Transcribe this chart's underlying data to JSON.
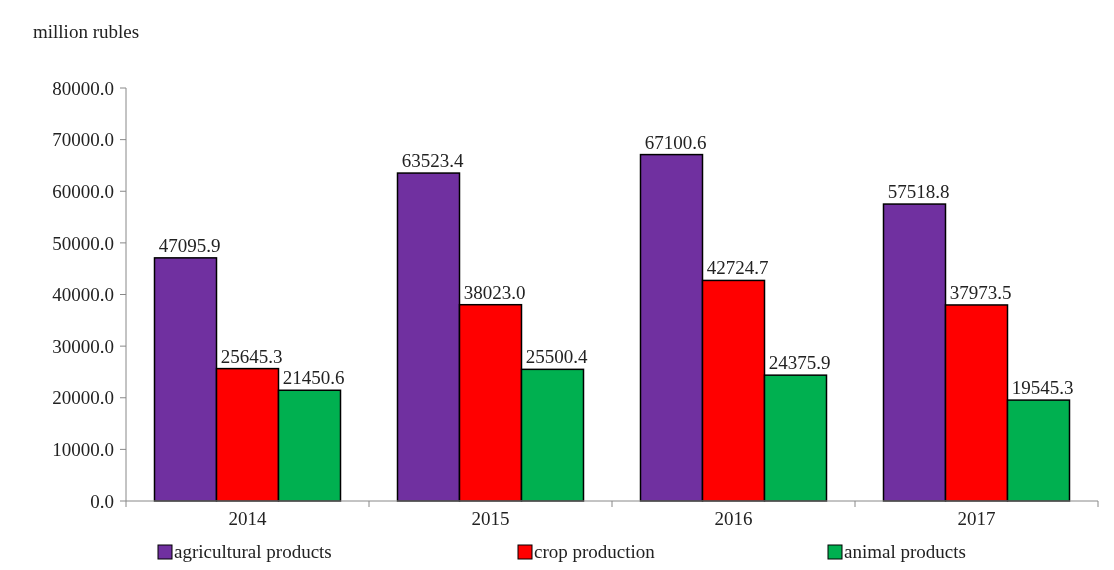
{
  "chart_data": {
    "type": "bar",
    "ylabel": "million rubles",
    "categories": [
      "2014",
      "2015",
      "2016",
      "2017"
    ],
    "series": [
      {
        "name": "agricultural products",
        "color": "#7030a0",
        "values": [
          47095.9,
          63523.4,
          67100.6,
          57518.8
        ],
        "value_labels": [
          "47095.9",
          "63523.4",
          "67100.6",
          "57518.8"
        ]
      },
      {
        "name": "crop production",
        "color": "#ff0000",
        "values": [
          25645.3,
          38023.0,
          42724.7,
          37973.5
        ],
        "value_labels": [
          "25645.3",
          "38023.0",
          "42724.7",
          "37973.5"
        ]
      },
      {
        "name": "animal products",
        "color": "#00b050",
        "values": [
          21450.6,
          25500.4,
          24375.9,
          19545.3
        ],
        "value_labels": [
          "21450.6",
          "25500.4",
          "24375.9",
          "19545.3"
        ]
      }
    ],
    "ylim": [
      0,
      80000
    ],
    "yticks": [
      {
        "value": 0,
        "label": "0.0"
      },
      {
        "value": 10000,
        "label": "10000.0"
      },
      {
        "value": 20000,
        "label": "20000.0"
      },
      {
        "value": 30000,
        "label": "30000.0"
      },
      {
        "value": 40000,
        "label": "40000.0"
      },
      {
        "value": 50000,
        "label": "50000.0"
      },
      {
        "value": 60000,
        "label": "60000.0"
      },
      {
        "value": 70000,
        "label": "70000.0"
      },
      {
        "value": 80000,
        "label": "80000.0"
      }
    ],
    "grid": false,
    "legend": "bottom"
  }
}
